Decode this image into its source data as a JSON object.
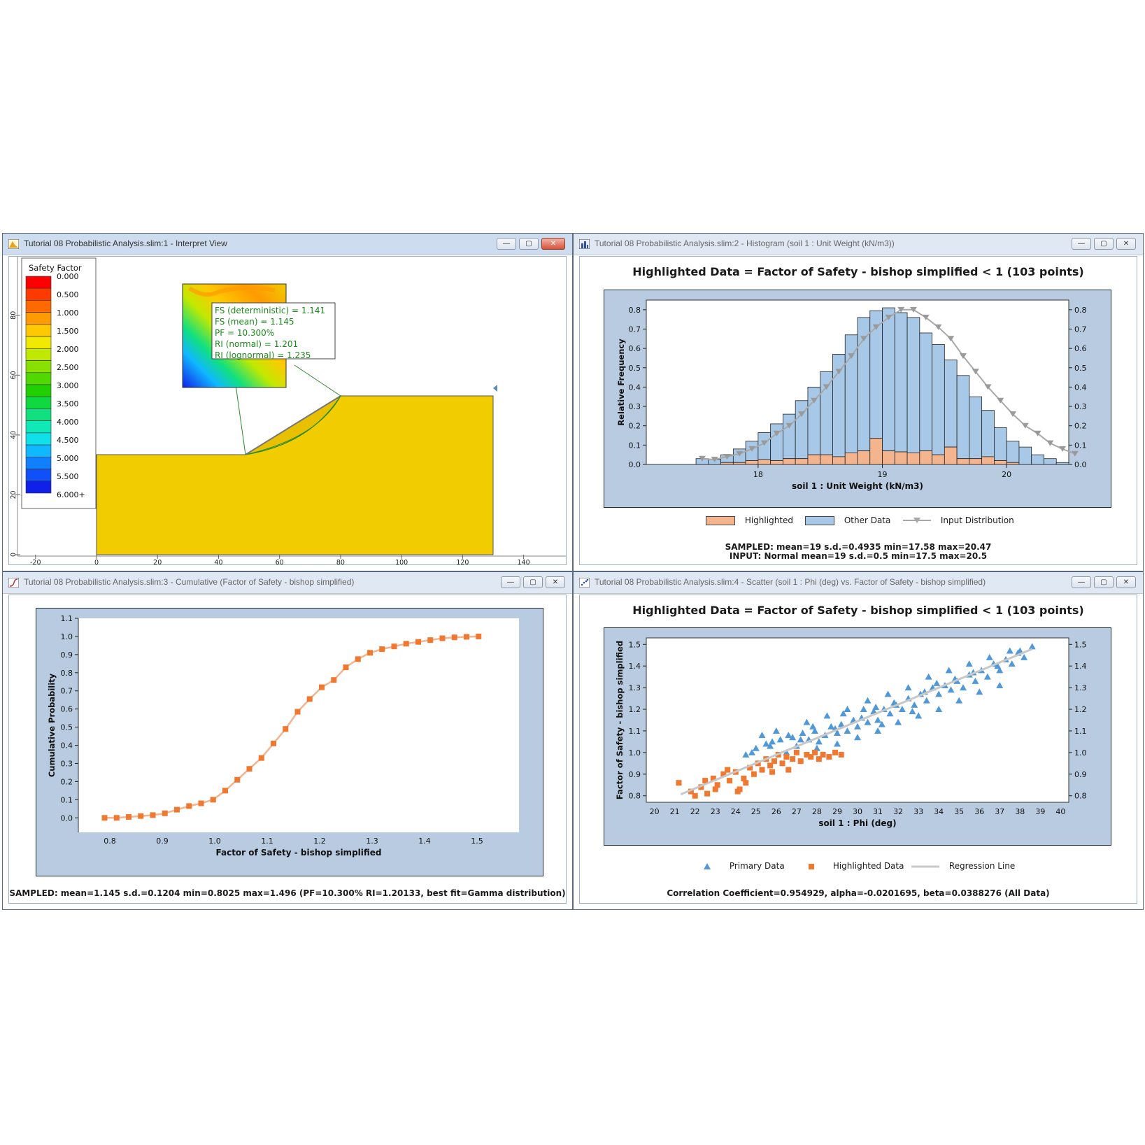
{
  "windows": {
    "interpret": {
      "title": "Tutorial 08 Probabilistic Analysis.slim:1 - Interpret View",
      "legend_title": "Safety Factor",
      "legend_levels": [
        "0.000",
        "0.500",
        "1.000",
        "1.500",
        "2.000",
        "2.500",
        "3.000",
        "3.500",
        "4.000",
        "4.500",
        "5.000",
        "5.500",
        "6.000+"
      ],
      "legend_colors": [
        "#ff0000",
        "#ff3a00",
        "#ff6a00",
        "#ff9a00",
        "#ffc800",
        "#f0e800",
        "#c0e800",
        "#88e000",
        "#50d800",
        "#20d000",
        "#10d840",
        "#10e080",
        "#10e8b8",
        "#10e0e8",
        "#10b8ff",
        "#1080ff",
        "#1050f8",
        "#1020e8"
      ],
      "y_ticks": [
        "80",
        "60",
        "40",
        "20",
        "0"
      ],
      "x_ticks": [
        "-20",
        "0",
        "20",
        "40",
        "60",
        "80",
        "100",
        "120",
        "140"
      ],
      "info_lines": [
        "FS (deterministic) = 1.141",
        "FS (mean) = 1.145",
        "PF = 10.300%",
        "RI (normal) = 1.201",
        "RI (lognormal) = 1.235"
      ],
      "slope_fill": "#f0cc00"
    },
    "histogram": {
      "title": "Tutorial 08 Probabilistic Analysis.slim:2 - Histogram (soil 1 : Unit Weight (kN/m3))",
      "chart_title": "Highlighted Data = Factor of Safety - bishop simplified < 1   (103 points)",
      "legend": [
        "Highlighted",
        "Other Data",
        "Input Distribution"
      ],
      "stats_line1": "SAMPLED: mean=19 s.d.=0.4935 min=17.58 max=20.47",
      "stats_line2": "INPUT: Normal mean=19 s.d.=0.5 min=17.5 max=20.5"
    },
    "cumulative": {
      "title": "Tutorial 08 Probabilistic Analysis.slim:3 - Cumulative (Factor of Safety - bishop simplified)",
      "stats_line": "SAMPLED: mean=1.145 s.d.=0.1204 min=0.8025 max=1.496  (PF=10.300% RI=1.20133, best fit=Gamma distribution)"
    },
    "scatter": {
      "title": "Tutorial 08 Probabilistic Analysis.slim:4 - Scatter (soil 1 : Phi (deg) vs. Factor of Safety - bishop simplified)",
      "chart_title": "Highlighted Data = Factor of Safety - bishop simplified < 1   (103 points)",
      "legend": [
        "Primary Data",
        "Highlighted Data",
        "Regression Line"
      ],
      "stats_line": "Correlation Coefficient=0.954929, alpha=-0.0201695, beta=0.0388276 (All Data)"
    }
  },
  "chart_data": [
    {
      "id": "histogram",
      "type": "bar",
      "xlabel": "soil 1 : Unit Weight (kN/m3)",
      "ylabel": "Relative Frequency",
      "x_ticks": [
        18,
        19,
        20
      ],
      "y_ticks": [
        "0.0",
        "0.1",
        "0.2",
        "0.3",
        "0.4",
        "0.5",
        "0.6",
        "0.7",
        "0.8"
      ],
      "xlim": [
        17.1,
        20.5
      ],
      "ylim": [
        0,
        0.85
      ],
      "bin_width": 0.1,
      "bin_starts": [
        17.5,
        17.6,
        17.7,
        17.8,
        17.9,
        18.0,
        18.1,
        18.2,
        18.3,
        18.4,
        18.5,
        18.6,
        18.7,
        18.8,
        18.9,
        19.0,
        19.1,
        19.2,
        19.3,
        19.4,
        19.5,
        19.6,
        19.7,
        19.8,
        19.9,
        20.0,
        20.1,
        20.2,
        20.3,
        20.4
      ],
      "series": [
        {
          "name": "Highlighted",
          "color": "#f4b48e",
          "values": [
            0,
            0,
            0.01,
            0.01,
            0.02,
            0.025,
            0.02,
            0.03,
            0.03,
            0.05,
            0.05,
            0.04,
            0.06,
            0.07,
            0.135,
            0.07,
            0.065,
            0.06,
            0.07,
            0.05,
            0.09,
            0.03,
            0.03,
            0.04,
            0.02,
            0.01,
            0,
            0,
            0,
            0
          ]
        },
        {
          "name": "Other Data",
          "color": "#a8c8e8",
          "values": [
            0.03,
            0.025,
            0.04,
            0.07,
            0.1,
            0.14,
            0.19,
            0.23,
            0.3,
            0.35,
            0.43,
            0.53,
            0.61,
            0.69,
            0.66,
            0.74,
            0.72,
            0.7,
            0.61,
            0.57,
            0.45,
            0.43,
            0.32,
            0.24,
            0.17,
            0.11,
            0.09,
            0.05,
            0.03,
            0.01
          ]
        },
        {
          "name": "Input Distribution",
          "color": "#a8a8a8",
          "x": [
            17.5,
            17.6,
            17.7,
            17.8,
            17.9,
            18.0,
            18.1,
            18.2,
            18.3,
            18.4,
            18.5,
            18.6,
            18.7,
            18.8,
            18.9,
            19.0,
            19.1,
            19.2,
            19.3,
            19.4,
            19.5,
            19.6,
            19.7,
            19.8,
            19.9,
            20.0,
            20.1,
            20.2,
            20.3,
            20.4,
            20.5
          ],
          "values": [
            0.03,
            0.025,
            0.04,
            0.055,
            0.08,
            0.11,
            0.16,
            0.2,
            0.26,
            0.33,
            0.4,
            0.48,
            0.56,
            0.65,
            0.71,
            0.76,
            0.8,
            0.8,
            0.76,
            0.71,
            0.65,
            0.56,
            0.48,
            0.4,
            0.33,
            0.26,
            0.2,
            0.16,
            0.11,
            0.08,
            0.055
          ]
        }
      ]
    },
    {
      "id": "cumulative",
      "type": "line",
      "xlabel": "Factor of Safety - bishop simplified",
      "ylabel": "Cumulative Probability",
      "x_ticks": [
        "0.8",
        "0.9",
        "1.0",
        "1.1",
        "1.2",
        "1.3",
        "1.4",
        "1.5"
      ],
      "y_ticks": [
        "0.0",
        "0.1",
        "0.2",
        "0.3",
        "0.4",
        "0.5",
        "0.6",
        "0.7",
        "0.8",
        "0.9",
        "1.0",
        "1.1"
      ],
      "xlim": [
        0.74,
        1.58
      ],
      "ylim": [
        -0.08,
        1.1
      ],
      "series": [
        {
          "name": "",
          "color": "#f07830",
          "x": [
            0.79,
            0.813,
            0.836,
            0.859,
            0.882,
            0.905,
            0.928,
            0.951,
            0.974,
            0.997,
            1.02,
            1.043,
            1.066,
            1.089,
            1.112,
            1.135,
            1.158,
            1.181,
            1.204,
            1.227,
            1.25,
            1.273,
            1.296,
            1.319,
            1.342,
            1.365,
            1.388,
            1.411,
            1.434,
            1.457,
            1.48,
            1.503
          ],
          "y": [
            0.0,
            0.0,
            0.005,
            0.01,
            0.015,
            0.025,
            0.045,
            0.065,
            0.08,
            0.1,
            0.15,
            0.21,
            0.27,
            0.33,
            0.41,
            0.49,
            0.585,
            0.655,
            0.72,
            0.76,
            0.83,
            0.875,
            0.91,
            0.93,
            0.945,
            0.96,
            0.97,
            0.98,
            0.99,
            0.995,
            0.998,
            1.0
          ]
        }
      ]
    },
    {
      "id": "scatter",
      "type": "scatter",
      "xlabel": "soil 1 : Phi (deg)",
      "ylabel": "Factor of Safety - bishop simplified",
      "x_ticks": [
        "20",
        "21",
        "22",
        "23",
        "24",
        "25",
        "26",
        "27",
        "28",
        "29",
        "30",
        "31",
        "32",
        "33",
        "34",
        "35",
        "36",
        "37",
        "38",
        "39",
        "40"
      ],
      "y_ticks": [
        "0.8",
        "0.9",
        "1.0",
        "1.1",
        "1.2",
        "1.3",
        "1.4",
        "1.5"
      ],
      "xlim": [
        19.6,
        40.4
      ],
      "ylim": [
        0.77,
        1.53
      ],
      "regression": {
        "alpha": -0.0201695,
        "beta": 0.0388276,
        "x_range": [
          21.3,
          38.6
        ],
        "color": "#c8c8c8"
      },
      "series": [
        {
          "name": "Primary Data",
          "color": "#5098d8",
          "points": [
            [
              24.5,
              0.99
            ],
            [
              25.0,
              1.02
            ],
            [
              25.5,
              1.04
            ],
            [
              25.8,
              1.05
            ],
            [
              26.2,
              1.06
            ],
            [
              26.5,
              1.0
            ],
            [
              26.8,
              1.07
            ],
            [
              27.0,
              1.03
            ],
            [
              27.3,
              1.09
            ],
            [
              27.6,
              1.06
            ],
            [
              27.9,
              1.1
            ],
            [
              28.1,
              1.05
            ],
            [
              28.4,
              1.08
            ],
            [
              28.7,
              1.12
            ],
            [
              29.0,
              1.09
            ],
            [
              29.2,
              1.13
            ],
            [
              29.5,
              1.1
            ],
            [
              29.8,
              1.15
            ],
            [
              30.0,
              1.12
            ],
            [
              30.2,
              1.16
            ],
            [
              30.5,
              1.14
            ],
            [
              30.8,
              1.19
            ],
            [
              31.0,
              1.15
            ],
            [
              31.3,
              1.2
            ],
            [
              31.6,
              1.18
            ],
            [
              31.9,
              1.22
            ],
            [
              32.2,
              1.2
            ],
            [
              32.5,
              1.25
            ],
            [
              32.8,
              1.22
            ],
            [
              33.1,
              1.27
            ],
            [
              33.4,
              1.24
            ],
            [
              33.7,
              1.3
            ],
            [
              34.0,
              1.27
            ],
            [
              34.3,
              1.31
            ],
            [
              34.6,
              1.29
            ],
            [
              34.9,
              1.33
            ],
            [
              35.2,
              1.3
            ],
            [
              35.5,
              1.36
            ],
            [
              35.8,
              1.33
            ],
            [
              36.1,
              1.38
            ],
            [
              36.4,
              1.35
            ],
            [
              36.7,
              1.41
            ],
            [
              37.0,
              1.38
            ],
            [
              37.3,
              1.43
            ],
            [
              37.6,
              1.41
            ],
            [
              37.9,
              1.46
            ],
            [
              38.2,
              1.44
            ],
            [
              38.6,
              1.49
            ],
            [
              25.3,
              1.08
            ],
            [
              26.0,
              1.1
            ],
            [
              27.5,
              1.14
            ],
            [
              28.5,
              1.17
            ],
            [
              29.5,
              1.2
            ],
            [
              30.5,
              1.24
            ],
            [
              31.5,
              1.27
            ],
            [
              32.5,
              1.3
            ],
            [
              33.5,
              1.35
            ],
            [
              34.5,
              1.38
            ],
            [
              35.5,
              1.41
            ],
            [
              36.5,
              1.44
            ],
            [
              37.5,
              1.47
            ],
            [
              28.0,
              1.02
            ],
            [
              29.0,
              1.04
            ],
            [
              30.0,
              1.07
            ],
            [
              31.0,
              1.1
            ],
            [
              32.0,
              1.14
            ],
            [
              33.0,
              1.17
            ],
            [
              34.0,
              1.2
            ],
            [
              35.0,
              1.24
            ],
            [
              36.0,
              1.28
            ],
            [
              37.0,
              1.31
            ],
            [
              30.3,
              1.2
            ],
            [
              31.8,
              1.23
            ],
            [
              33.3,
              1.28
            ],
            [
              34.8,
              1.34
            ],
            [
              29.3,
              1.18
            ],
            [
              27.8,
              1.12
            ],
            [
              26.6,
              1.08
            ],
            [
              25.7,
              1.03
            ],
            [
              24.8,
              1.0
            ],
            [
              32.7,
              1.19
            ],
            [
              35.7,
              1.37
            ],
            [
              36.9,
              1.4
            ],
            [
              38.0,
              1.47
            ],
            [
              30.9,
              1.21
            ],
            [
              33.9,
              1.32
            ],
            [
              31.2,
              1.13
            ],
            [
              28.9,
              1.11
            ],
            [
              27.2,
              1.06
            ]
          ]
        },
        {
          "name": "Highlighted Data",
          "color": "#f07830",
          "points": [
            [
              21.2,
              0.86
            ],
            [
              21.8,
              0.82
            ],
            [
              22.0,
              0.8
            ],
            [
              22.3,
              0.84
            ],
            [
              22.6,
              0.81
            ],
            [
              22.9,
              0.88
            ],
            [
              23.1,
              0.85
            ],
            [
              23.4,
              0.9
            ],
            [
              23.7,
              0.87
            ],
            [
              24.0,
              0.91
            ],
            [
              24.2,
              0.83
            ],
            [
              24.4,
              0.88
            ],
            [
              24.7,
              0.93
            ],
            [
              24.9,
              0.9
            ],
            [
              25.1,
              0.95
            ],
            [
              25.3,
              0.92
            ],
            [
              25.5,
              0.97
            ],
            [
              25.7,
              0.94
            ],
            [
              25.9,
              0.96
            ],
            [
              26.1,
              0.99
            ],
            [
              26.3,
              0.95
            ],
            [
              26.5,
              0.98
            ],
            [
              26.8,
              0.97
            ],
            [
              27.0,
              1.0
            ],
            [
              27.2,
              0.96
            ],
            [
              27.5,
              0.99
            ],
            [
              27.7,
              0.98
            ],
            [
              27.9,
              1.0
            ],
            [
              28.1,
              0.97
            ],
            [
              28.3,
              0.99
            ],
            [
              28.6,
              0.98
            ],
            [
              28.9,
              1.0
            ],
            [
              29.2,
              0.99
            ],
            [
              23.0,
              0.83
            ],
            [
              24.5,
              0.86
            ],
            [
              25.8,
              0.91
            ],
            [
              26.6,
              0.92
            ],
            [
              24.1,
              0.82
            ],
            [
              22.5,
              0.87
            ],
            [
              23.6,
              0.92
            ]
          ]
        }
      ]
    }
  ]
}
